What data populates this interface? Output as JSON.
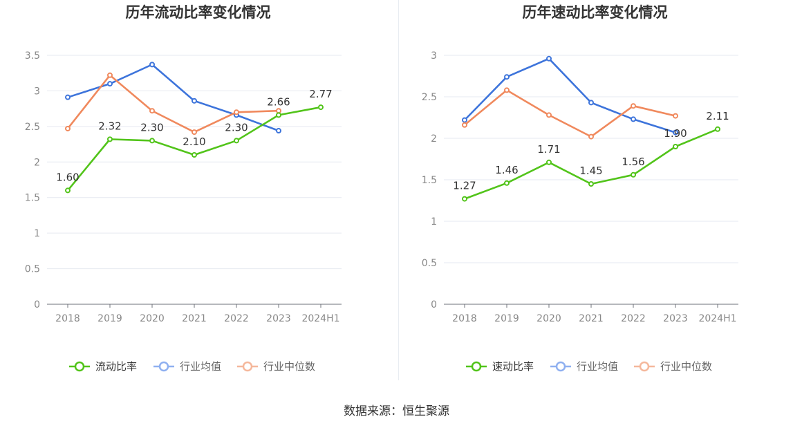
{
  "source_label": "数据来源：恒生聚源",
  "colors": {
    "primary": "#52c41a",
    "average": "#3d74db",
    "median": "#f0895d"
  },
  "chart_data": [
    {
      "type": "line",
      "title": "历年流动比率变化情况",
      "categories": [
        "2018",
        "2019",
        "2020",
        "2021",
        "2022",
        "2023",
        "2024H1"
      ],
      "ylim": [
        0,
        3.5
      ],
      "yticks": [
        0,
        0.5,
        1,
        1.5,
        2,
        2.5,
        3,
        3.5
      ],
      "ytick_labels": [
        "0",
        "0.5",
        "1",
        "1.5",
        "2",
        "2.5",
        "3",
        "3.5"
      ],
      "grid": true,
      "legend_position": "bottom",
      "series": [
        {
          "name": "流动比率",
          "color": "#52c41a",
          "labeled": true,
          "values": [
            1.6,
            2.32,
            2.3,
            2.1,
            2.3,
            2.66,
            2.77
          ],
          "labels": [
            "1.60",
            "2.32",
            "2.30",
            "2.10",
            "2.30",
            "2.66",
            "2.77"
          ]
        },
        {
          "name": "行业均值",
          "color": "#3d74db",
          "labeled": false,
          "values": [
            2.91,
            3.1,
            3.37,
            2.86,
            2.66,
            2.44,
            null
          ]
        },
        {
          "name": "行业中位数",
          "color": "#f0895d",
          "labeled": false,
          "values": [
            2.47,
            3.22,
            2.72,
            2.42,
            2.7,
            2.72,
            null
          ]
        }
      ]
    },
    {
      "type": "line",
      "title": "历年速动比率变化情况",
      "categories": [
        "2018",
        "2019",
        "2020",
        "2021",
        "2022",
        "2023",
        "2024H1"
      ],
      "ylim": [
        0,
        3
      ],
      "yticks": [
        0,
        0.5,
        1,
        1.5,
        2,
        2.5,
        3
      ],
      "ytick_labels": [
        "0",
        "0.5",
        "1",
        "1.5",
        "2",
        "2.5",
        "3"
      ],
      "grid": true,
      "legend_position": "bottom",
      "series": [
        {
          "name": "速动比率",
          "color": "#52c41a",
          "labeled": true,
          "values": [
            1.27,
            1.46,
            1.71,
            1.45,
            1.56,
            1.9,
            2.11
          ],
          "labels": [
            "1.27",
            "1.46",
            "1.71",
            "1.45",
            "1.56",
            "1.90",
            "2.11"
          ]
        },
        {
          "name": "行业均值",
          "color": "#3d74db",
          "labeled": false,
          "values": [
            2.22,
            2.74,
            2.96,
            2.43,
            2.23,
            2.07,
            null
          ]
        },
        {
          "name": "行业中位数",
          "color": "#f0895d",
          "labeled": false,
          "values": [
            2.16,
            2.58,
            2.28,
            2.02,
            2.39,
            2.27,
            null
          ]
        }
      ]
    }
  ]
}
